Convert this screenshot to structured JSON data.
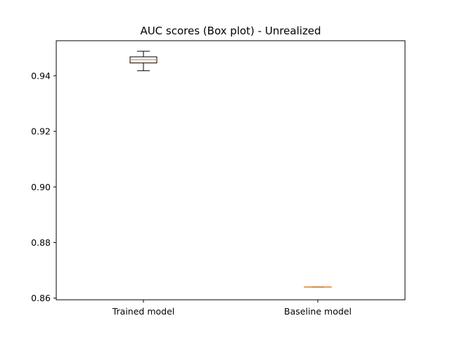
{
  "chart_data": {
    "type": "box",
    "title": "AUC scores (Box plot) - Unrealized",
    "xlabel": "",
    "ylabel": "",
    "categories": [
      "Trained model",
      "Baseline model"
    ],
    "boxes": [
      {
        "category": "Trained model",
        "whisker_low": 0.9418,
        "q1": 0.9446,
        "median": 0.9458,
        "q3": 0.9468,
        "whisker_high": 0.9488
      },
      {
        "category": "Baseline model",
        "whisker_low": 0.864,
        "q1": 0.864,
        "median": 0.864,
        "q3": 0.864,
        "whisker_high": 0.864
      }
    ],
    "ylim": [
      0.8594,
      0.9526
    ],
    "yticks": [
      0.86,
      0.88,
      0.9,
      0.92,
      0.94
    ],
    "ytick_labels": [
      "0.86",
      "0.88",
      "0.90",
      "0.92",
      "0.94"
    ],
    "grid": false,
    "colors": {
      "box": "#000000",
      "median": "#ff7f0e"
    }
  }
}
